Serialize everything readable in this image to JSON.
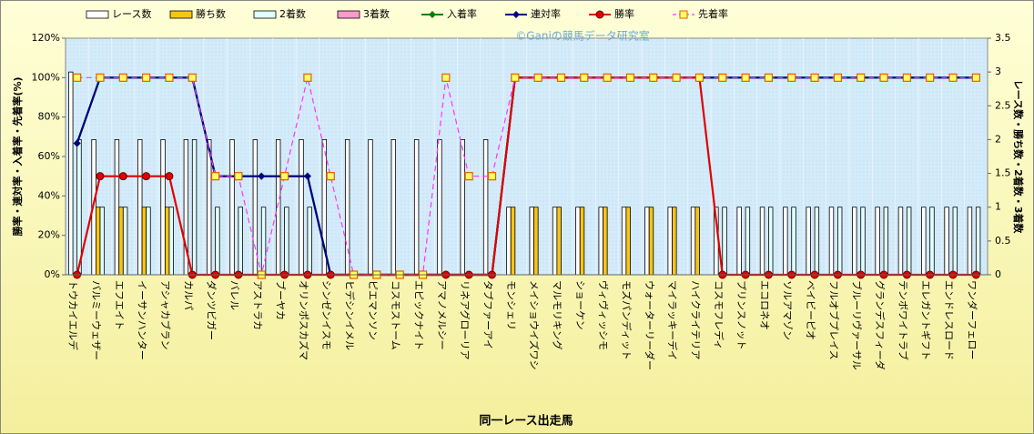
{
  "chart_data": {
    "type": "combo",
    "watermark": "©Ganiの競馬データ研究室",
    "x_label": "同一レース出走馬",
    "y_label": "勝率・連対率・入着率・先着率(%)",
    "y2_label": "レース数・勝ち数・2着数・3着数",
    "categories": [
      "トウカイエルデ",
      "バルミーウェザー",
      "エフエイト",
      "イーサンハンター",
      "アシャカブラン",
      "カルパ",
      "ダンツビガー",
      "バレル",
      "アストラカ",
      "ブーヤカ",
      "オリンポスカズマ",
      "シンゼンイスモ",
      "ヒデシンイメル",
      "ピエマンソン",
      "コスモストーム",
      "エピックナイト",
      "アマノメルシー",
      "リネアグローリア",
      "タブファーアイ",
      "モンシェリ",
      "メイショウイズワシ",
      "マルモリキング",
      "ショーケン",
      "ヴィヴィッシモ",
      "モズパンディット",
      "ウォーターリーダー",
      "マイラッキーデイ",
      "ハイクライテリア",
      "コスモフレディ",
      "プリンスノット",
      "エコロネオ",
      "ソルアマゾン",
      "ベイビーピオ",
      "フルオブプレイス",
      "ブルーリヴァーサル",
      "グランデスフィーダ",
      "テンボワイトラブ",
      "エレガントギフト",
      "エンドレスロード",
      "ワンダーフェロー"
    ],
    "ylim": [
      0,
      120
    ],
    "yticks": [
      {
        "value": 0,
        "label": "0%"
      },
      {
        "value": 20,
        "label": "20%"
      },
      {
        "value": 40,
        "label": "40%"
      },
      {
        "value": 60,
        "label": "60%"
      },
      {
        "value": 80,
        "label": "80%"
      },
      {
        "value": 100,
        "label": "100%"
      },
      {
        "value": 120,
        "label": "120%"
      }
    ],
    "y2lim": [
      0,
      3.5
    ],
    "y2ticks": [
      0,
      0.5,
      1,
      1.5,
      2,
      2.5,
      3,
      3.5
    ],
    "series": [
      {
        "name": "レース数",
        "type": "bar",
        "axis": "y2",
        "color": "#ffffff",
        "values": [
          3,
          2,
          2,
          2,
          2,
          2,
          2,
          2,
          2,
          2,
          2,
          2,
          2,
          2,
          2,
          2,
          2,
          2,
          2,
          1,
          1,
          1,
          1,
          1,
          1,
          1,
          1,
          1,
          1,
          1,
          1,
          1,
          1,
          1,
          1,
          1,
          1,
          1,
          1,
          1
        ]
      },
      {
        "name": "勝ち数",
        "type": "bar",
        "axis": "y2",
        "color": "#f5c518",
        "values": [
          0,
          1,
          1,
          1,
          1,
          0,
          0,
          0,
          0,
          0,
          0,
          0,
          0,
          0,
          0,
          0,
          0,
          0,
          0,
          1,
          1,
          1,
          1,
          1,
          1,
          1,
          1,
          1,
          0,
          0,
          0,
          0,
          0,
          0,
          0,
          0,
          0,
          0,
          0,
          0
        ]
      },
      {
        "name": "2着数",
        "type": "bar",
        "axis": "y2",
        "color": "#e0ffff",
        "values": [
          2,
          1,
          1,
          1,
          1,
          2,
          1,
          1,
          1,
          1,
          1,
          0,
          0,
          0,
          0,
          0,
          0,
          0,
          0,
          0,
          0,
          0,
          0,
          0,
          0,
          0,
          0,
          0,
          1,
          1,
          1,
          1,
          1,
          1,
          1,
          1,
          1,
          1,
          1,
          1
        ]
      },
      {
        "name": "3着数",
        "type": "bar",
        "axis": "y2",
        "color": "#ff99cc",
        "values": [
          0,
          0,
          0,
          0,
          0,
          0,
          0,
          0,
          0,
          0,
          0,
          0,
          0,
          0,
          0,
          0,
          0,
          0,
          0,
          0,
          0,
          0,
          0,
          0,
          0,
          0,
          0,
          0,
          0,
          0,
          0,
          0,
          0,
          0,
          0,
          0,
          0,
          0,
          0,
          0
        ]
      },
      {
        "name": "入着率",
        "type": "line",
        "color": "#008000",
        "marker": "diamond",
        "values": [
          66.7,
          100,
          100,
          100,
          100,
          100,
          50,
          50,
          50,
          50,
          50,
          0,
          0,
          0,
          0,
          0,
          0,
          0,
          0,
          100,
          100,
          100,
          100,
          100,
          100,
          100,
          100,
          100,
          100,
          100,
          100,
          100,
          100,
          100,
          100,
          100,
          100,
          100,
          100,
          100
        ]
      },
      {
        "name": "連対率",
        "type": "line",
        "color": "#000080",
        "marker": "diamond",
        "values": [
          66.7,
          100,
          100,
          100,
          100,
          100,
          50,
          50,
          50,
          50,
          50,
          0,
          0,
          0,
          0,
          0,
          0,
          0,
          0,
          100,
          100,
          100,
          100,
          100,
          100,
          100,
          100,
          100,
          100,
          100,
          100,
          100,
          100,
          100,
          100,
          100,
          100,
          100,
          100,
          100
        ]
      },
      {
        "name": "勝率",
        "type": "line",
        "color": "#e00000",
        "marker": "circle",
        "values": [
          0,
          50,
          50,
          50,
          50,
          0,
          0,
          0,
          0,
          0,
          0,
          0,
          0,
          0,
          0,
          0,
          0,
          0,
          0,
          100,
          100,
          100,
          100,
          100,
          100,
          100,
          100,
          100,
          0,
          0,
          0,
          0,
          0,
          0,
          0,
          0,
          0,
          0,
          0,
          0
        ]
      },
      {
        "name": "先着率",
        "type": "line",
        "color": "#ff33ff",
        "marker": "square",
        "dashed": true,
        "values": [
          100,
          100,
          100,
          100,
          100,
          100,
          50,
          50,
          0,
          50,
          100,
          50,
          0,
          0,
          0,
          0,
          100,
          50,
          50,
          100,
          100,
          100,
          100,
          100,
          100,
          100,
          100,
          100,
          100,
          100,
          100,
          100,
          100,
          100,
          100,
          100,
          100,
          100,
          100,
          100
        ]
      }
    ]
  }
}
